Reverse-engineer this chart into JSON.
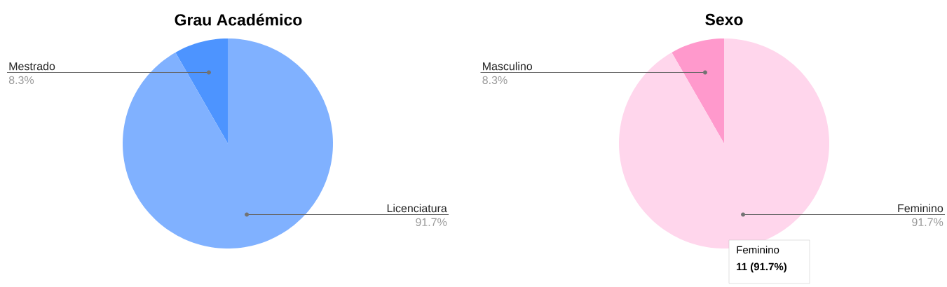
{
  "chart_data": [
    {
      "type": "pie",
      "title": "Grau Académico",
      "categories": [
        "Mestrado",
        "Licenciatura"
      ],
      "values": [
        8.3,
        91.7
      ],
      "colors": [
        "#4d94ff",
        "#80b1ff"
      ],
      "value_labels": [
        "8.3%",
        "91.7%"
      ]
    },
    {
      "type": "pie",
      "title": "Sexo",
      "categories": [
        "Masculino",
        "Feminino"
      ],
      "values": [
        8.3,
        91.7
      ],
      "colors": [
        "#ff99cc",
        "#ffd6ec"
      ],
      "value_labels": [
        "8.3%",
        "91.7%"
      ],
      "annotations": [
        "Feminino",
        "11 (91.7%)"
      ]
    }
  ]
}
